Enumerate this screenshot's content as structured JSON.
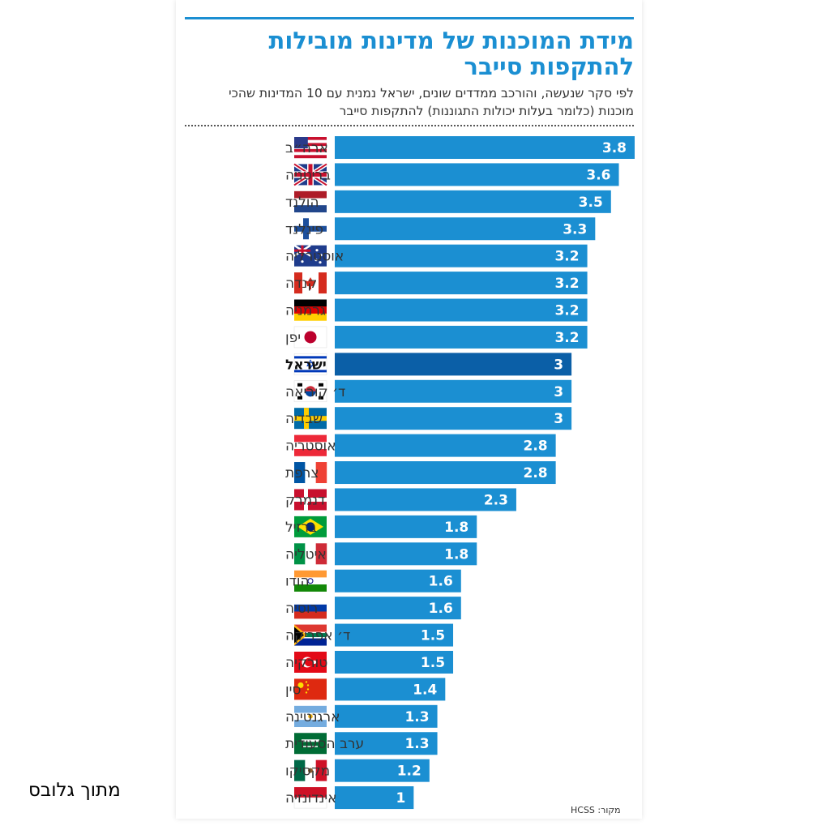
{
  "header": {
    "title": "מידת המוכנות של מדינות מובילות להתקפות סייבר",
    "subtitle": "לפי סקר שנעשה, והורכב ממדדים שונים, ישראל נמנית עם 10 המדינות שהכי מוכנות (כלומר בעלות יכולות התגוננות) להתקפות סייבר"
  },
  "footer": {
    "source": "מקור: HCSS",
    "credit": "מתוך גלובס"
  },
  "colors": {
    "bar": "#1b8fd2",
    "highlight": "#0b5fa7",
    "accent": "#1b8fd2"
  },
  "chart_data": {
    "type": "bar",
    "orientation": "horizontal",
    "title": "מידת המוכנות של מדינות מובילות להתקפות סייבר",
    "xlabel": "",
    "ylabel": "",
    "xlim": [
      0,
      3.8
    ],
    "grid": false,
    "highlight": "ישראל",
    "categories": [
      "ארה״ב",
      "בריטניה",
      "הולנד",
      "פינלנד",
      "אוסטרליה",
      "קנדה",
      "גרמניה",
      "יפן",
      "ישראל",
      "ד׳ קוריאה",
      "שבדיה",
      "אוסטריה",
      "צרפת",
      "דנמרק",
      "ברזיל",
      "איטליה",
      "הודו",
      "רוסיה",
      "ד׳ אפריקה",
      "טורקיה",
      "סין",
      "ארגנטינה",
      "ערב הסעודית",
      "מקסיקו",
      "אינדונזיה"
    ],
    "flags": [
      "us-flag-icon",
      "uk-flag-icon",
      "netherlands-flag-icon",
      "finland-flag-icon",
      "australia-flag-icon",
      "canada-flag-icon",
      "germany-flag-icon",
      "japan-flag-icon",
      "israel-flag-icon",
      "south-korea-flag-icon",
      "sweden-flag-icon",
      "austria-flag-icon",
      "france-flag-icon",
      "denmark-flag-icon",
      "brazil-flag-icon",
      "italy-flag-icon",
      "india-flag-icon",
      "russia-flag-icon",
      "south-africa-flag-icon",
      "turkey-flag-icon",
      "china-flag-icon",
      "argentina-flag-icon",
      "saudi-arabia-flag-icon",
      "mexico-flag-icon",
      "indonesia-flag-icon"
    ],
    "values": [
      3.8,
      3.6,
      3.5,
      3.3,
      3.2,
      3.2,
      3.2,
      3.2,
      3,
      3,
      3,
      2.8,
      2.8,
      2.3,
      1.8,
      1.8,
      1.6,
      1.6,
      1.5,
      1.5,
      1.4,
      1.3,
      1.3,
      1.2,
      1
    ],
    "labels": [
      "3.8",
      "3.6",
      "3.5",
      "3.3",
      "3.2",
      "3.2",
      "3.2",
      "3.2",
      "3",
      "3",
      "3",
      "2.8",
      "2.8",
      "2.3",
      "1.8",
      "1.8",
      "1.6",
      "1.6",
      "1.5",
      "1.5",
      "1.4",
      "1.3",
      "1.3",
      "1.2",
      "1"
    ]
  }
}
